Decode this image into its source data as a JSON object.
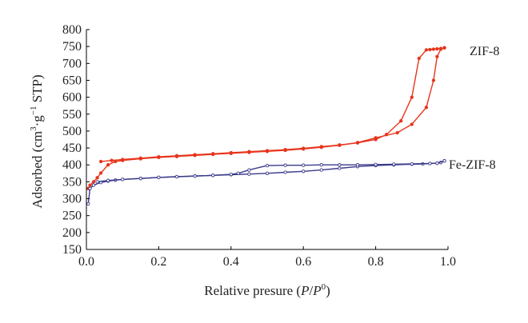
{
  "chart_data": {
    "type": "line",
    "xlabel": {
      "prefix": "Relative presure (",
      "p": "P",
      "slash": "/",
      "p2": "P",
      "sup": "0",
      "suffix": ")"
    },
    "ylabel": {
      "prefix": "Adsorbed (cm",
      "sup1": "3",
      "mid": "·g",
      "sup2": "−1",
      "suffix": " STP)"
    },
    "xlim": [
      0.0,
      1.0
    ],
    "ylim": [
      150,
      800
    ],
    "x_ticks": [
      "0.0",
      "0.2",
      "0.4",
      "0.6",
      "0.8",
      "1.0"
    ],
    "y_ticks": [
      "150",
      "200",
      "250",
      "300",
      "350",
      "400",
      "450",
      "500",
      "550",
      "600",
      "650",
      "700",
      "750",
      "800"
    ],
    "grid": false,
    "series": [
      {
        "name": "ZIF-8",
        "color": "#e8341c",
        "adsorption": {
          "x": [
            0.005,
            0.01,
            0.02,
            0.03,
            0.04,
            0.06,
            0.08,
            0.1,
            0.15,
            0.2,
            0.25,
            0.3,
            0.35,
            0.4,
            0.45,
            0.5,
            0.55,
            0.6,
            0.65,
            0.7,
            0.75,
            0.8,
            0.86,
            0.9,
            0.94,
            0.96,
            0.97,
            0.98,
            0.99
          ],
          "y": [
            330,
            340,
            350,
            362,
            376,
            400,
            410,
            413,
            418,
            422,
            425,
            428,
            431,
            434,
            437,
            440,
            443,
            447,
            452,
            458,
            466,
            480,
            495,
            520,
            570,
            650,
            720,
            742,
            746
          ]
        },
        "desorption": {
          "x": [
            0.99,
            0.98,
            0.97,
            0.96,
            0.95,
            0.94,
            0.92,
            0.9,
            0.87,
            0.83,
            0.8,
            0.75,
            0.7,
            0.65,
            0.6,
            0.55,
            0.5,
            0.45,
            0.4,
            0.35,
            0.3,
            0.25,
            0.2,
            0.15,
            0.1,
            0.07,
            0.04
          ],
          "y": [
            746,
            744,
            743,
            742,
            741,
            740,
            715,
            600,
            530,
            490,
            475,
            465,
            459,
            454,
            449,
            445,
            442,
            439,
            436,
            433,
            430,
            427,
            424,
            420,
            416,
            413,
            410
          ]
        }
      },
      {
        "name": "Fe-ZIF-8",
        "color": "#3a3a8c",
        "adsorption": {
          "x": [
            0.005,
            0.01,
            0.02,
            0.04,
            0.06,
            0.08,
            0.1,
            0.15,
            0.2,
            0.25,
            0.3,
            0.35,
            0.4,
            0.45,
            0.5,
            0.55,
            0.6,
            0.65,
            0.7,
            0.75,
            0.8,
            0.85,
            0.9,
            0.93,
            0.95,
            0.97,
            0.98,
            0.99
          ],
          "y": [
            285,
            330,
            340,
            348,
            352,
            355,
            357,
            360,
            363,
            365,
            367,
            369,
            371,
            373,
            375,
            378,
            381,
            385,
            390,
            395,
            398,
            400,
            402,
            403,
            404,
            405,
            407,
            412
          ]
        },
        "desorption": {
          "x": [
            0.99,
            0.97,
            0.95,
            0.9,
            0.85,
            0.8,
            0.75,
            0.7,
            0.65,
            0.6,
            0.55,
            0.5,
            0.45,
            0.42,
            0.4,
            0.35,
            0.3,
            0.25,
            0.2,
            0.15,
            0.1,
            0.06,
            0.03
          ],
          "y": [
            412,
            405,
            404,
            403,
            402,
            401,
            400,
            400,
            400,
            399,
            399,
            398,
            385,
            375,
            372,
            369,
            367,
            365,
            363,
            360,
            357,
            354,
            350
          ]
        }
      }
    ]
  }
}
